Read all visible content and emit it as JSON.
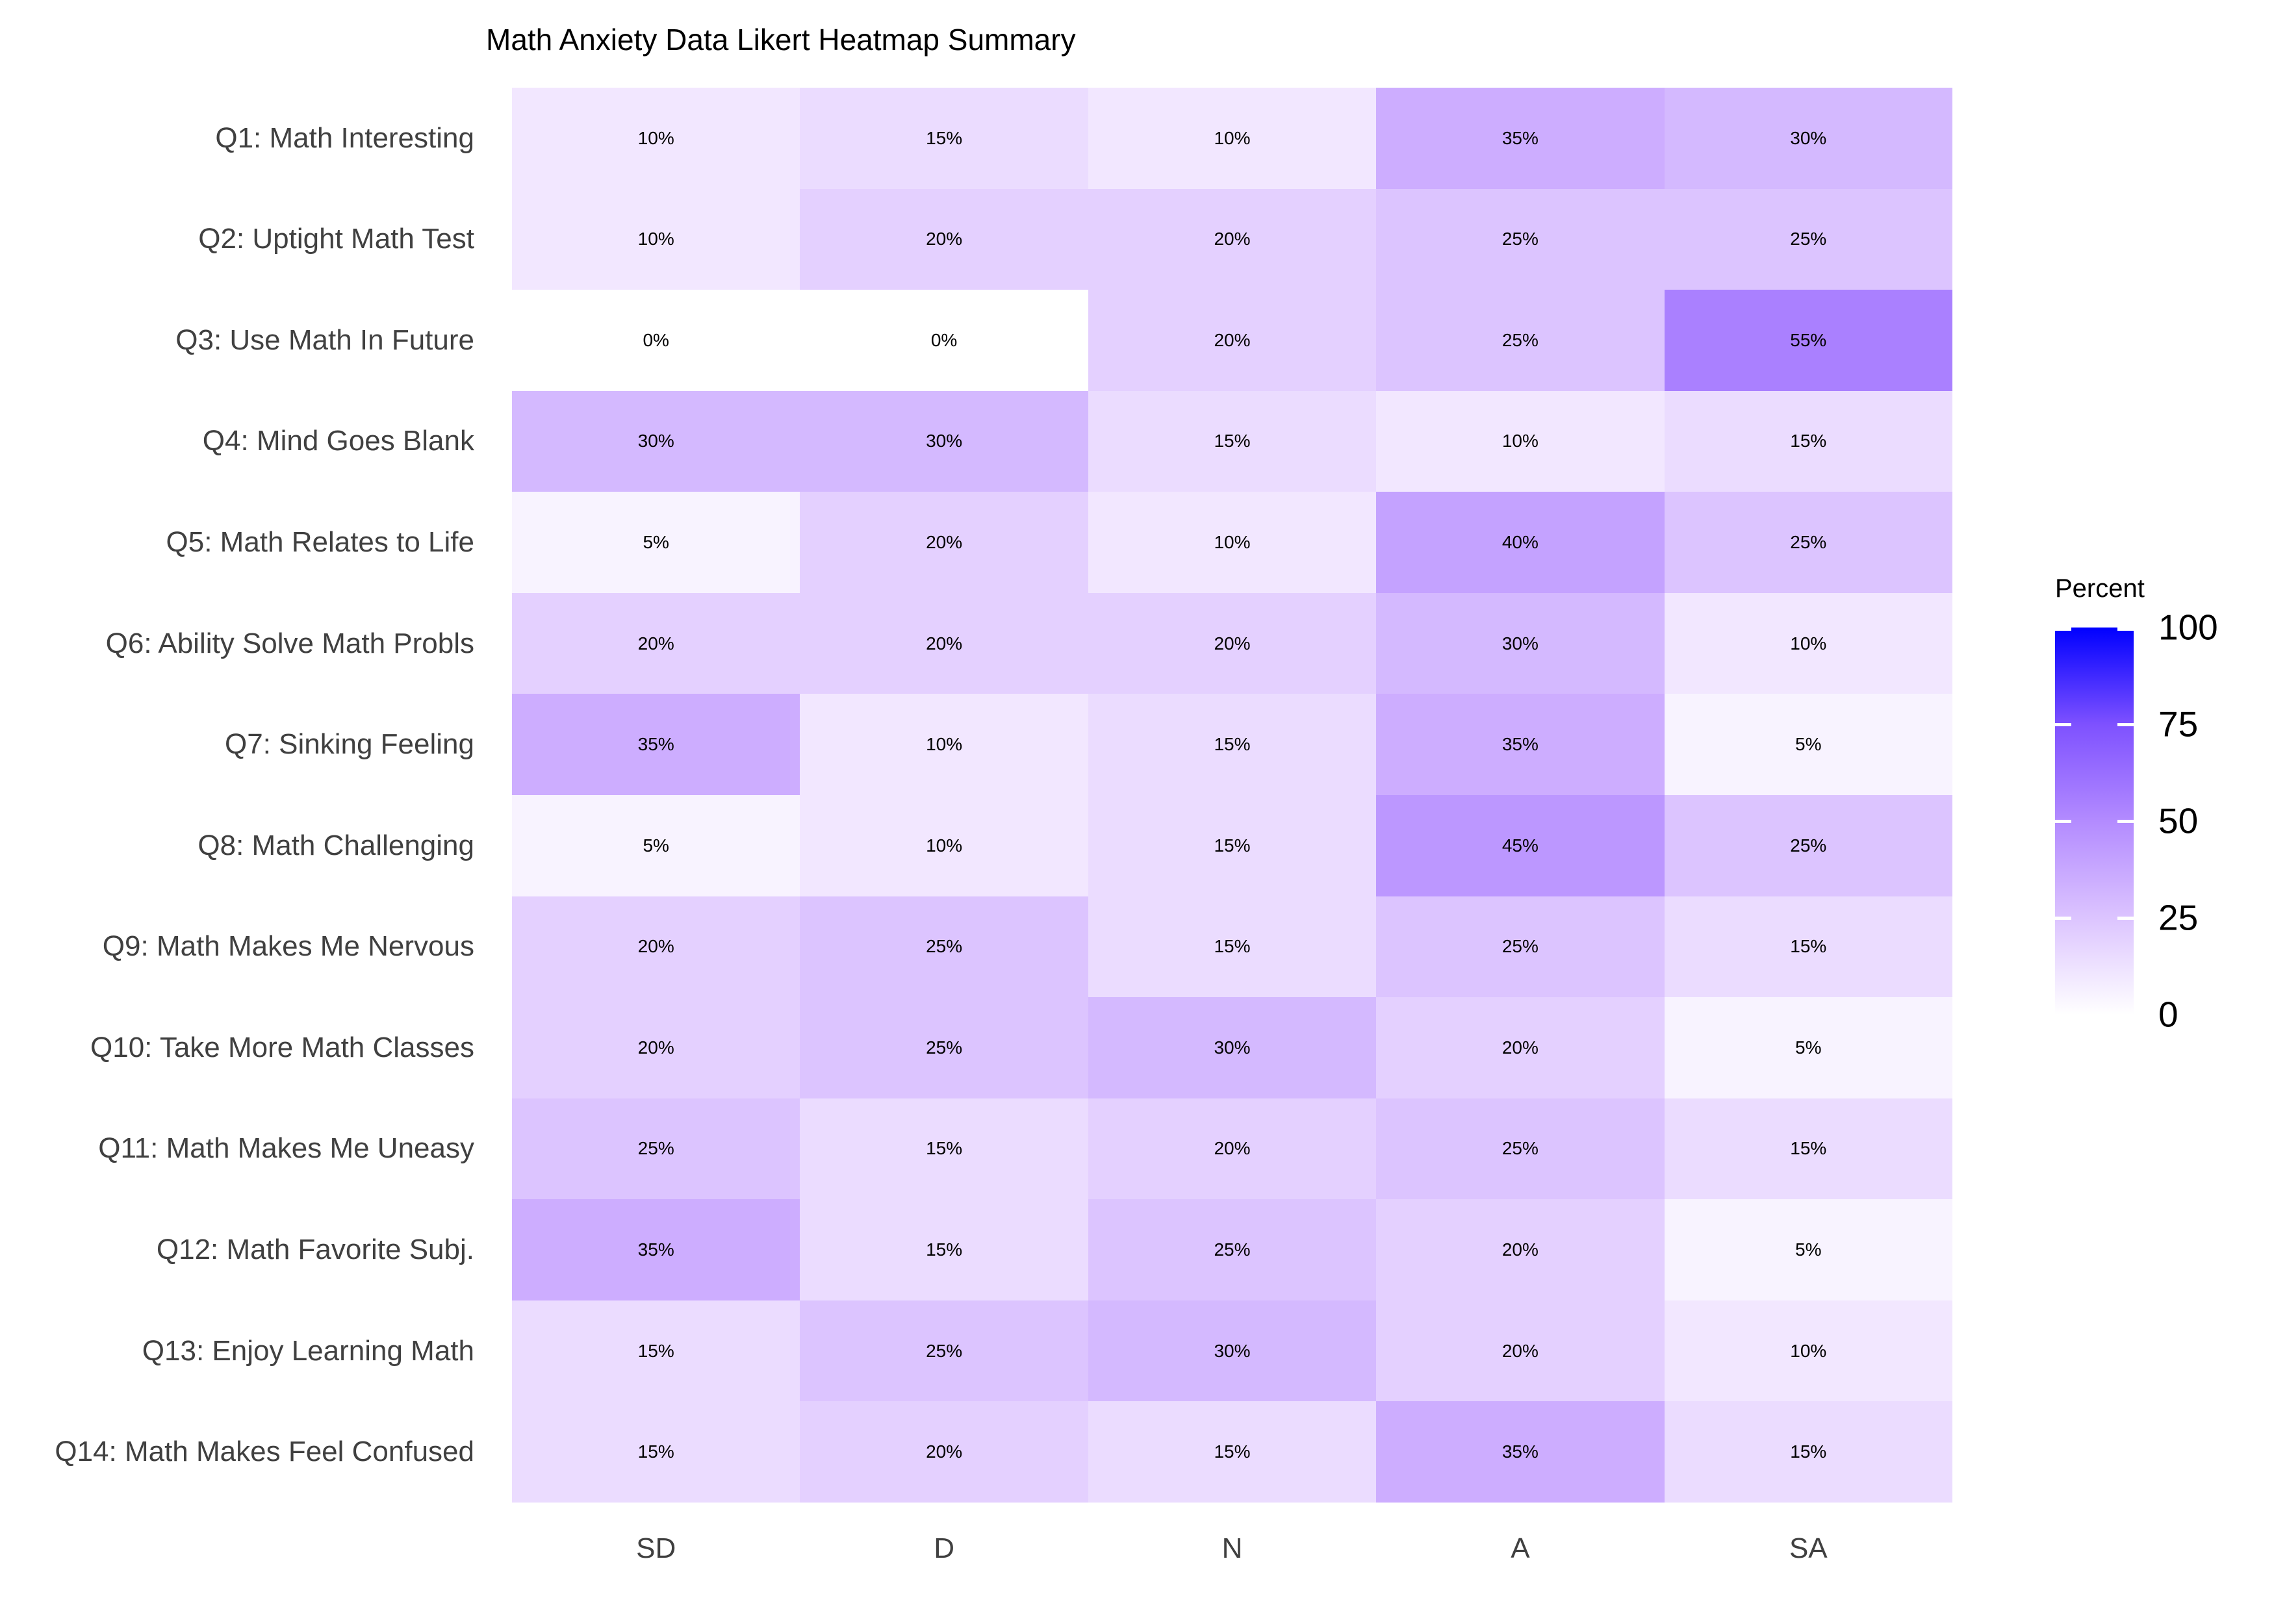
{
  "chart_data": {
    "type": "heatmap",
    "title": "Math Anxiety Data Likert Heatmap Summary",
    "rows": [
      "Q1: Math Interesting",
      "Q2: Uptight Math Test",
      "Q3: Use Math In Future",
      "Q4: Mind Goes Blank",
      "Q5: Math Relates to Life",
      "Q6: Ability Solve Math Probls",
      "Q7: Sinking Feeling",
      "Q8: Math Challenging",
      "Q9: Math Makes Me Nervous",
      "Q10: Take More Math Classes",
      "Q11: Math Makes Me Uneasy",
      "Q12: Math Favorite Subj.",
      "Q13: Enjoy Learning Math",
      "Q14: Math Makes Feel Confused"
    ],
    "columns": [
      "SD",
      "D",
      "N",
      "A",
      "SA"
    ],
    "values": [
      [
        10,
        15,
        10,
        35,
        30
      ],
      [
        10,
        20,
        20,
        25,
        25
      ],
      [
        0,
        0,
        20,
        25,
        55
      ],
      [
        30,
        30,
        15,
        10,
        15
      ],
      [
        5,
        20,
        10,
        40,
        25
      ],
      [
        20,
        20,
        20,
        30,
        10
      ],
      [
        35,
        10,
        15,
        35,
        5
      ],
      [
        5,
        10,
        15,
        45,
        25
      ],
      [
        20,
        25,
        15,
        25,
        15
      ],
      [
        20,
        25,
        30,
        20,
        5
      ],
      [
        25,
        15,
        20,
        25,
        15
      ],
      [
        35,
        15,
        25,
        20,
        5
      ],
      [
        15,
        25,
        30,
        20,
        10
      ],
      [
        15,
        20,
        15,
        35,
        15
      ]
    ],
    "cell_label_suffix": "%",
    "grid_on": false,
    "legend": {
      "title": "Percent",
      "position": "right",
      "ticks": [
        100,
        75,
        50,
        25,
        0
      ],
      "range": [
        0,
        100
      ],
      "low_color": "#FFFFFF",
      "high_color": "#0000FF",
      "gradient_stops": [
        "#0000FF",
        "#7E51FF",
        "#B38BFF",
        "#DCC4FF",
        "#FFFFFF"
      ]
    }
  },
  "palette": {
    "0": "#FFFFFF",
    "5": "#F8F3FF",
    "10": "#F2E7FF",
    "15": "#EBDCFF",
    "20": "#E4D0FF",
    "25": "#DCC4FF",
    "30": "#D4B9FF",
    "35": "#CDADFF",
    "40": "#C4A2FF",
    "45": "#BC97FF",
    "50": "#B38BFF",
    "55": "#AA80FF",
    "75": "#7E51FF",
    "100": "#0000FF"
  },
  "colors": {
    "background": "#FFFFFF",
    "title_text": "#000000",
    "axis_text": "#404040",
    "cell_text": "#000000",
    "legend_text": "#000000",
    "legend_tick_mark": "#FFFFFF"
  }
}
